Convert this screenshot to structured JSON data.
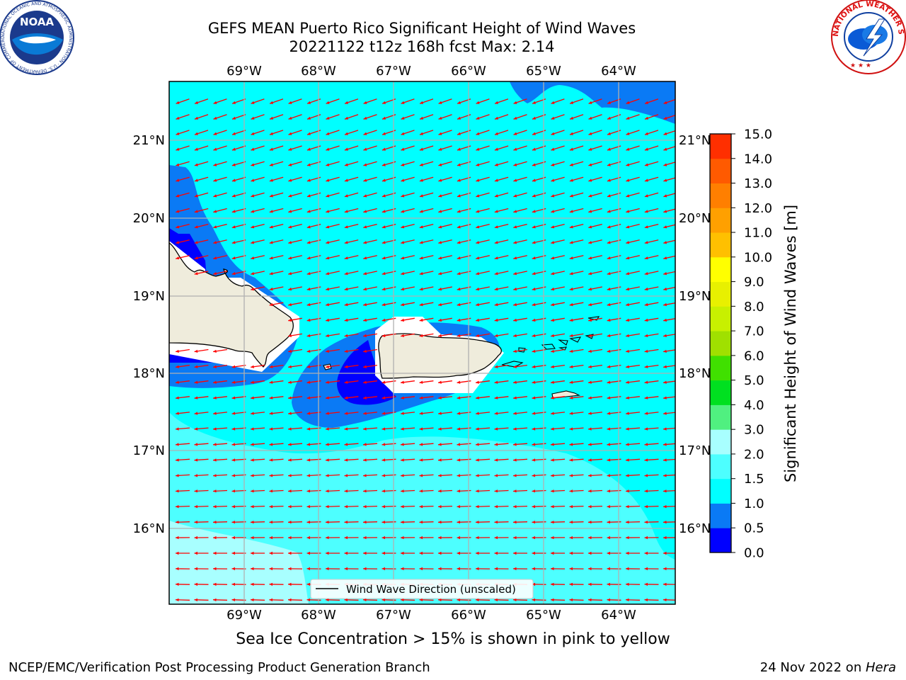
{
  "title": {
    "line1": "GEFS MEAN Puerto Rico Significant Height of Wind Waves",
    "line2": "20221122 t12z 168h fcst   Max: 2.14"
  },
  "map": {
    "lon_labels": [
      "69°W",
      "68°W",
      "67°W",
      "66°W",
      "65°W",
      "64°W"
    ],
    "lat_labels": [
      "21°N",
      "20°N",
      "19°N",
      "18°N",
      "17°N",
      "16°N"
    ],
    "legend_label": "Wind Wave Direction (unscaled)"
  },
  "colorbar": {
    "label": "Significant Height of Wind Waves [m]",
    "ticks": [
      "0.0",
      "0.5",
      "1.0",
      "1.5",
      "2.0",
      "3.0",
      "4.0",
      "5.0",
      "6.0",
      "7.0",
      "8.0",
      "9.0",
      "10.0",
      "11.0",
      "12.0",
      "13.0",
      "14.0",
      "15.0"
    ],
    "colors": [
      "#0000ff",
      "#0a7af5",
      "#00ffff",
      "#4dffff",
      "#a8ffff",
      "#50f080",
      "#00e020",
      "#40e000",
      "#a0e000",
      "#c8f000",
      "#e8f000",
      "#ffff00",
      "#ffc000",
      "#ffa000",
      "#ff7f00",
      "#ff5a00",
      "#ff2f00",
      "#ff0000"
    ]
  },
  "logos": {
    "noaa_text": "NOAA",
    "noaa_ring": "NATIONAL OCEANIC AND ATMOSPHERIC ADMINISTRATION · U.S. DEPARTMENT OF COMMERCE",
    "nws_ring": "NATIONAL WEATHER SERVICE"
  },
  "caption": "Sea Ice Concentration > 15% is shown in pink to yellow",
  "footer": {
    "left": "NCEP/EMC/Verification Post Processing Product Generation Branch",
    "right_prefix": "24 Nov 2022 on ",
    "right_host": "Hera"
  }
}
